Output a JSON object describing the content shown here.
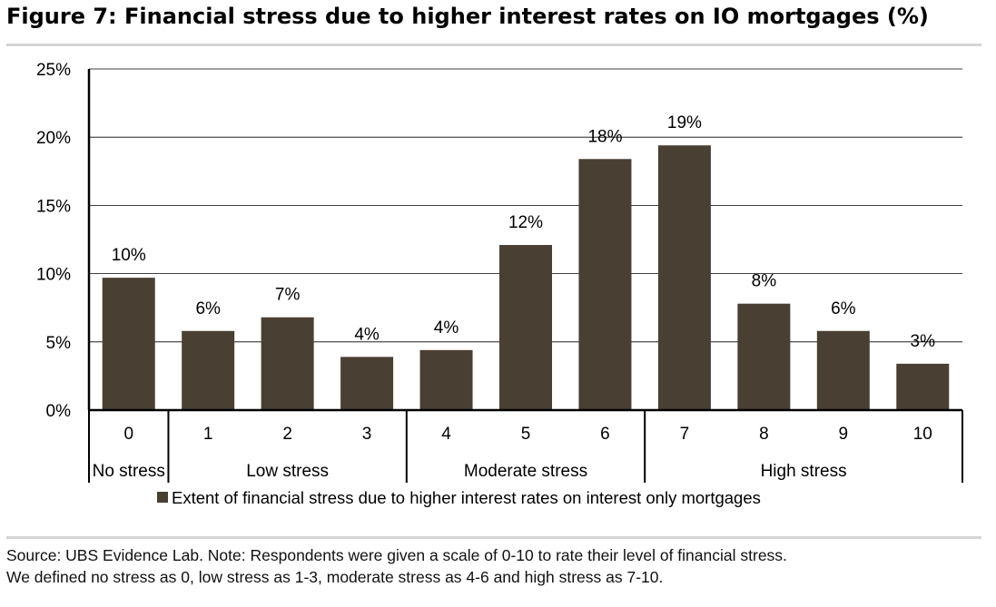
{
  "title": "Figure 7: Financial stress due to higher interest rates on IO mortgages (%)",
  "chart_data": {
    "type": "bar",
    "categories": [
      "0",
      "1",
      "2",
      "3",
      "4",
      "5",
      "6",
      "7",
      "8",
      "9",
      "10"
    ],
    "series": [
      {
        "name": "Extent of financial stress due to higher interest rates on interest only mortgages",
        "values": [
          9.7,
          5.8,
          6.8,
          3.9,
          4.4,
          12.1,
          18.4,
          19.4,
          7.8,
          5.8,
          3.4
        ],
        "labels": [
          "10%",
          "6%",
          "7%",
          "4%",
          "4%",
          "12%",
          "18%",
          "19%",
          "8%",
          "6%",
          "3%"
        ],
        "color": "#4a3f33"
      }
    ],
    "groups": [
      {
        "label": "No stress",
        "start": 0,
        "end": 0
      },
      {
        "label": "Low stress",
        "start": 1,
        "end": 3
      },
      {
        "label": "Moderate stress",
        "start": 4,
        "end": 6
      },
      {
        "label": "High stress",
        "start": 7,
        "end": 10
      }
    ],
    "yticks": [
      "0%",
      "5%",
      "10%",
      "15%",
      "20%",
      "25%"
    ],
    "ylim": [
      0,
      25
    ],
    "grid": true,
    "legend": "bottom"
  },
  "source": {
    "line1": "Source:  UBS Evidence Lab. Note: Respondents were given a scale of 0-10 to rate their level of financial stress.",
    "line2": "We defined no stress as 0, low stress as 1-3, moderate stress as 4-6 and high stress as 7-10."
  }
}
